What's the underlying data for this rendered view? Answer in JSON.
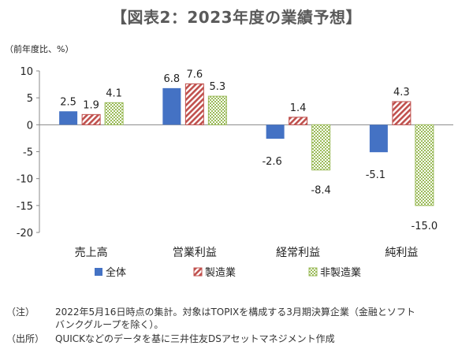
{
  "title": "【図表2：2023年度の業績予想】",
  "chart_data": {
    "type": "bar",
    "unit_label": "（前年度比、%）",
    "categories": [
      "売上高",
      "営業利益",
      "経常利益",
      "純利益"
    ],
    "series": [
      {
        "name": "全体",
        "values": [
          2.5,
          6.8,
          -2.6,
          -5.1
        ],
        "color": "#4472c4",
        "pattern": "solid"
      },
      {
        "name": "製造業",
        "values": [
          1.9,
          7.6,
          1.4,
          4.3
        ],
        "color": "#c0504d",
        "pattern": "diagonal"
      },
      {
        "name": "非製造業",
        "values": [
          4.1,
          5.3,
          -8.4,
          -15.0
        ],
        "color": "#9bbb59",
        "pattern": "checker"
      }
    ],
    "labels": [
      [
        "2.5",
        "6.8",
        "-2.6",
        "-5.1"
      ],
      [
        "1.9",
        "7.6",
        "1.4",
        "4.3"
      ],
      [
        "4.1",
        "5.3",
        "-8.4",
        "-15.0"
      ]
    ],
    "ylim": [
      -20,
      10
    ],
    "yticks": [
      10,
      5,
      0,
      -5,
      -10,
      -15,
      -20
    ],
    "legend_position": "bottom"
  },
  "notes": {
    "note_label": "（注）",
    "note_line1": "2022年5月16日時点の集計。対象はTOPIXを構成する3月期決算企業（金融とソフト",
    "note_line2": "バンクグループを除く）。",
    "source_label": "（出所）",
    "source_text": "QUICKなどのデータを基に三井住友DSアセットマネジメント作成"
  }
}
